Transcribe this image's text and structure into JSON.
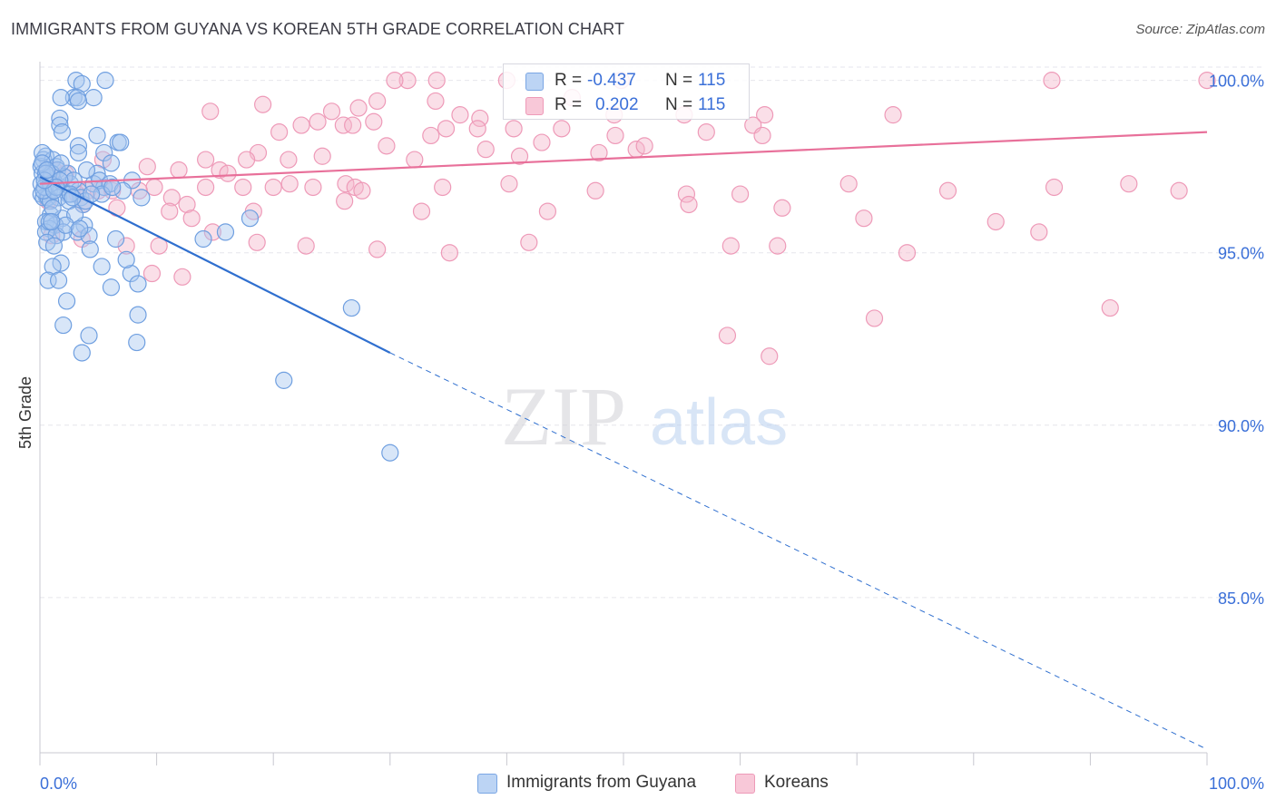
{
  "header": {
    "title": "IMMIGRANTS FROM GUYANA VS KOREAN 5TH GRADE CORRELATION CHART",
    "source": "Source: ZipAtlas.com"
  },
  "legend": {
    "row1": {
      "r_label": "R =",
      "r_value": "-0.437",
      "n_label": "N =",
      "n_value": "115"
    },
    "row2": {
      "r_label": "R =",
      "r_value": "0.202",
      "n_label": "N =",
      "n_value": "115"
    }
  },
  "bottom_legend": {
    "series1": "Immigrants from Guyana",
    "series2": "Koreans"
  },
  "colors": {
    "blue_fill": "#a9c8f0",
    "blue_stroke": "#6f9fe0",
    "blue_line": "#2f6fcf",
    "pink_fill": "#f5b8cc",
    "pink_stroke": "#ee9ab8",
    "pink_line": "#e8709a",
    "axis_label": "#3a6fd8",
    "grid": "#e6e6ec"
  },
  "chart_data": {
    "type": "scatter",
    "title": "IMMIGRANTS FROM GUYANA VS KOREAN 5TH GRADE CORRELATION CHART",
    "xlabel": "",
    "ylabel": "5th Grade",
    "xlim": [
      0,
      100
    ],
    "ylim": [
      80.5,
      100.7
    ],
    "x_tick_labels": [
      "0.0%",
      "100.0%"
    ],
    "y_ticks": [
      85,
      90,
      95,
      100
    ],
    "y_tick_labels": [
      "85.0%",
      "90.0%",
      "95.0%",
      "100.0%"
    ],
    "grid": true,
    "watermark": {
      "part1": "ZIP",
      "part2": "atlas"
    },
    "series": [
      {
        "name": "Immigrants from Guyana",
        "color": "blue",
        "trend": {
          "x0": 0,
          "y0": 97.2,
          "x1": 30,
          "y1": 92.1,
          "dashed_to_x": 100,
          "dashed_to_y": 80.6
        },
        "points": [
          [
            3.1,
            100.0
          ],
          [
            5.6,
            100.0
          ],
          [
            3.6,
            99.9
          ],
          [
            2.9,
            99.5
          ],
          [
            4.6,
            99.5
          ],
          [
            3.2,
            99.5
          ],
          [
            1.8,
            99.5
          ],
          [
            3.3,
            99.4
          ],
          [
            1.7,
            98.9
          ],
          [
            1.7,
            98.7
          ],
          [
            4.9,
            98.4
          ],
          [
            1.9,
            98.5
          ],
          [
            6.7,
            98.2
          ],
          [
            3.3,
            98.1
          ],
          [
            0.5,
            97.8
          ],
          [
            0.3,
            97.7
          ],
          [
            1.1,
            97.7
          ],
          [
            3.3,
            97.9
          ],
          [
            5.5,
            97.9
          ],
          [
            1.4,
            97.5
          ],
          [
            0.1,
            97.5
          ],
          [
            1.5,
            97.4
          ],
          [
            0.2,
            97.3
          ],
          [
            2.4,
            97.3
          ],
          [
            6.1,
            97.6
          ],
          [
            4.9,
            97.3
          ],
          [
            0.6,
            97.2
          ],
          [
            7.9,
            97.1
          ],
          [
            2.6,
            97.0
          ],
          [
            0.1,
            97.0
          ],
          [
            1.3,
            96.9
          ],
          [
            0.8,
            96.8
          ],
          [
            4.6,
            97.0
          ],
          [
            5.5,
            96.9
          ],
          [
            1.8,
            96.9
          ],
          [
            3.3,
            96.8
          ],
          [
            0.1,
            96.7
          ],
          [
            0.6,
            96.6
          ],
          [
            2.4,
            96.7
          ],
          [
            0.3,
            96.6
          ],
          [
            0.7,
            96.6
          ],
          [
            1.6,
            96.6
          ],
          [
            3.5,
            96.6
          ],
          [
            2.5,
            96.5
          ],
          [
            0.9,
            96.5
          ],
          [
            8.7,
            96.6
          ],
          [
            3.7,
            96.4
          ],
          [
            0.9,
            96.1
          ],
          [
            1.9,
            96.0
          ],
          [
            0.5,
            95.9
          ],
          [
            1.3,
            95.8
          ],
          [
            3.8,
            95.8
          ],
          [
            0.8,
            95.7
          ],
          [
            3.2,
            95.6
          ],
          [
            0.5,
            95.6
          ],
          [
            2.0,
            95.6
          ],
          [
            1.4,
            95.5
          ],
          [
            4.2,
            95.5
          ],
          [
            6.5,
            95.4
          ],
          [
            0.6,
            95.3
          ],
          [
            1.2,
            95.2
          ],
          [
            4.3,
            95.1
          ],
          [
            15.9,
            95.6
          ],
          [
            18.0,
            96.0
          ],
          [
            14.0,
            95.4
          ],
          [
            7.8,
            94.4
          ],
          [
            7.4,
            94.8
          ],
          [
            1.8,
            94.7
          ],
          [
            1.1,
            94.6
          ],
          [
            5.3,
            94.6
          ],
          [
            0.7,
            94.2
          ],
          [
            1.6,
            94.2
          ],
          [
            8.4,
            94.1
          ],
          [
            6.1,
            94.0
          ],
          [
            2.3,
            93.6
          ],
          [
            26.7,
            93.4
          ],
          [
            8.4,
            93.2
          ],
          [
            2.0,
            92.9
          ],
          [
            4.2,
            92.6
          ],
          [
            8.3,
            92.4
          ],
          [
            3.6,
            92.1
          ],
          [
            20.9,
            91.3
          ],
          [
            30.0,
            89.2
          ],
          [
            0.2,
            97.9
          ],
          [
            1.0,
            97.3
          ],
          [
            2.1,
            97.2
          ],
          [
            5.1,
            97.1
          ],
          [
            6.0,
            97.0
          ],
          [
            7.1,
            96.8
          ],
          [
            2.9,
            97.1
          ],
          [
            0.4,
            96.9
          ],
          [
            0.9,
            97.0
          ],
          [
            1.1,
            96.3
          ],
          [
            3.0,
            96.1
          ],
          [
            6.9,
            98.2
          ],
          [
            0.2,
            97.6
          ],
          [
            4.0,
            97.4
          ],
          [
            1.7,
            97.1
          ],
          [
            2.6,
            96.7
          ],
          [
            0.3,
            96.8
          ],
          [
            5.3,
            96.7
          ],
          [
            0.5,
            97.3
          ],
          [
            1.4,
            96.9
          ],
          [
            3.9,
            96.5
          ],
          [
            0.8,
            95.9
          ],
          [
            2.2,
            95.8
          ],
          [
            1.2,
            96.8
          ],
          [
            0.4,
            97.1
          ],
          [
            2.8,
            96.6
          ],
          [
            4.4,
            96.7
          ],
          [
            1.0,
            95.9
          ],
          [
            3.4,
            95.7
          ],
          [
            6.2,
            96.9
          ],
          [
            0.6,
            97.4
          ],
          [
            1.8,
            97.6
          ]
        ]
      },
      {
        "name": "Koreans",
        "color": "pink",
        "trend": {
          "x0": 0,
          "y0": 97.0,
          "x1": 100,
          "y1": 98.5
        },
        "points": [
          [
            31.5,
            100.0
          ],
          [
            34.0,
            100.0
          ],
          [
            40.0,
            100.0
          ],
          [
            49.8,
            100.0
          ],
          [
            86.7,
            100.0
          ],
          [
            100.0,
            100.0
          ],
          [
            30.4,
            100.0
          ],
          [
            45.6,
            99.5
          ],
          [
            28.9,
            99.4
          ],
          [
            33.9,
            99.4
          ],
          [
            14.6,
            99.1
          ],
          [
            25.0,
            99.1
          ],
          [
            19.1,
            99.3
          ],
          [
            27.3,
            99.2
          ],
          [
            36.0,
            99.0
          ],
          [
            37.7,
            98.9
          ],
          [
            55.2,
            99.0
          ],
          [
            49.2,
            99.0
          ],
          [
            62.1,
            99.0
          ],
          [
            73.1,
            99.0
          ],
          [
            28.6,
            98.8
          ],
          [
            23.8,
            98.8
          ],
          [
            22.4,
            98.7
          ],
          [
            26.0,
            98.7
          ],
          [
            26.8,
            98.7
          ],
          [
            34.8,
            98.6
          ],
          [
            37.5,
            98.6
          ],
          [
            40.6,
            98.6
          ],
          [
            44.7,
            98.6
          ],
          [
            20.5,
            98.5
          ],
          [
            33.5,
            98.4
          ],
          [
            49.3,
            98.4
          ],
          [
            57.1,
            98.5
          ],
          [
            61.1,
            98.7
          ],
          [
            61.9,
            98.4
          ],
          [
            43.0,
            98.2
          ],
          [
            29.7,
            98.1
          ],
          [
            38.2,
            98.0
          ],
          [
            51.1,
            98.0
          ],
          [
            51.8,
            98.1
          ],
          [
            18.7,
            97.9
          ],
          [
            17.7,
            97.7
          ],
          [
            14.2,
            97.7
          ],
          [
            21.3,
            97.7
          ],
          [
            24.2,
            97.8
          ],
          [
            32.1,
            97.7
          ],
          [
            41.1,
            97.8
          ],
          [
            47.9,
            97.9
          ],
          [
            15.4,
            97.4
          ],
          [
            16.1,
            97.3
          ],
          [
            9.2,
            97.5
          ],
          [
            5.4,
            97.7
          ],
          [
            1.2,
            97.4
          ],
          [
            0.5,
            97.3
          ],
          [
            2.2,
            97.3
          ],
          [
            26.2,
            97.0
          ],
          [
            27.0,
            96.9
          ],
          [
            11.9,
            97.4
          ],
          [
            21.4,
            97.0
          ],
          [
            23.4,
            96.9
          ],
          [
            9.8,
            96.9
          ],
          [
            5.0,
            96.8
          ],
          [
            4.1,
            96.8
          ],
          [
            3.2,
            96.7
          ],
          [
            6.2,
            96.8
          ],
          [
            8.5,
            96.8
          ],
          [
            11.3,
            96.6
          ],
          [
            12.6,
            96.4
          ],
          [
            14.2,
            96.9
          ],
          [
            17.4,
            96.9
          ],
          [
            20.0,
            96.9
          ],
          [
            27.6,
            96.8
          ],
          [
            34.5,
            96.9
          ],
          [
            40.2,
            97.0
          ],
          [
            47.6,
            96.8
          ],
          [
            55.4,
            96.7
          ],
          [
            60.0,
            96.7
          ],
          [
            69.3,
            97.0
          ],
          [
            77.8,
            96.8
          ],
          [
            86.9,
            96.9
          ],
          [
            93.3,
            97.0
          ],
          [
            97.6,
            96.8
          ],
          [
            0.7,
            96.5
          ],
          [
            3.7,
            96.4
          ],
          [
            6.6,
            96.3
          ],
          [
            11.1,
            96.2
          ],
          [
            13.0,
            96.0
          ],
          [
            18.3,
            96.2
          ],
          [
            26.1,
            96.5
          ],
          [
            32.7,
            96.2
          ],
          [
            43.5,
            96.2
          ],
          [
            55.6,
            96.4
          ],
          [
            63.6,
            96.3
          ],
          [
            70.6,
            96.0
          ],
          [
            81.9,
            95.9
          ],
          [
            85.6,
            95.6
          ],
          [
            1.0,
            95.5
          ],
          [
            3.6,
            95.4
          ],
          [
            7.4,
            95.2
          ],
          [
            10.2,
            95.2
          ],
          [
            14.8,
            95.6
          ],
          [
            18.6,
            95.3
          ],
          [
            22.8,
            95.2
          ],
          [
            28.9,
            95.1
          ],
          [
            35.1,
            95.0
          ],
          [
            41.9,
            95.3
          ],
          [
            59.2,
            95.2
          ],
          [
            63.2,
            95.2
          ],
          [
            74.3,
            95.0
          ],
          [
            9.6,
            94.4
          ],
          [
            12.2,
            94.3
          ],
          [
            71.5,
            93.1
          ],
          [
            91.7,
            93.4
          ],
          [
            58.9,
            92.6
          ],
          [
            62.5,
            92.0
          ]
        ]
      }
    ]
  }
}
